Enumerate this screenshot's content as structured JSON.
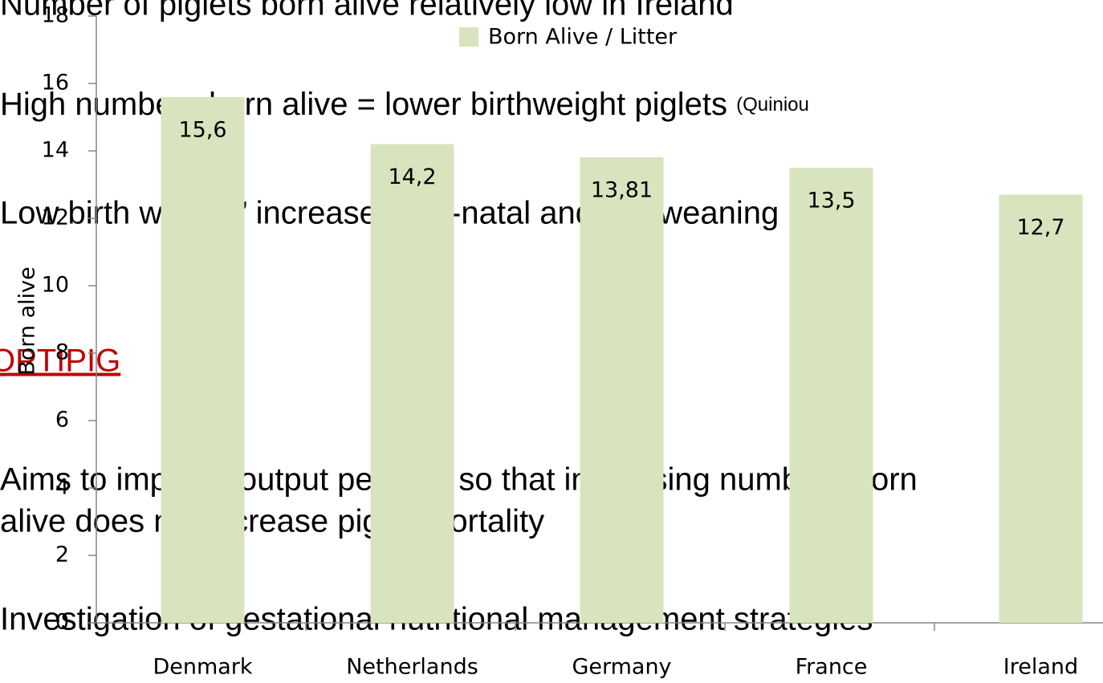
{
  "slide_text": {
    "line1": "Number of piglets born alive relatively low in Ireland",
    "line2": "High numbers born alive = lower birthweight piglets",
    "line2_ref": "(Quiniou",
    "line3": "Low birth weight ’ increased pre-natal and pre-weaning",
    "heading": "OPTIPIG",
    "line4": "Aims to improve output per sow so that increasing numbers born",
    "line5": "alive does not increase piglet mortality",
    "line6": "Investigation of gestational nutritional management strategies"
  },
  "chart_data": {
    "type": "bar",
    "y_label": "Born alive",
    "categories": [
      "Denmark",
      "Netherlands",
      "Germany",
      "France",
      "Ireland"
    ],
    "series": [
      {
        "name": "Born Alive / Litter",
        "color": "#d7e4bd",
        "values": [
          15.6,
          14.2,
          13.81,
          13.5,
          12.7
        ],
        "value_labels": [
          "15,6",
          "14,2",
          "13,81",
          "13,5",
          "12,7"
        ]
      }
    ],
    "ylim": [
      0,
      18
    ],
    "yticks": [
      0,
      2,
      4,
      6,
      8,
      10,
      12,
      14,
      16,
      18
    ],
    "legend": "top"
  }
}
